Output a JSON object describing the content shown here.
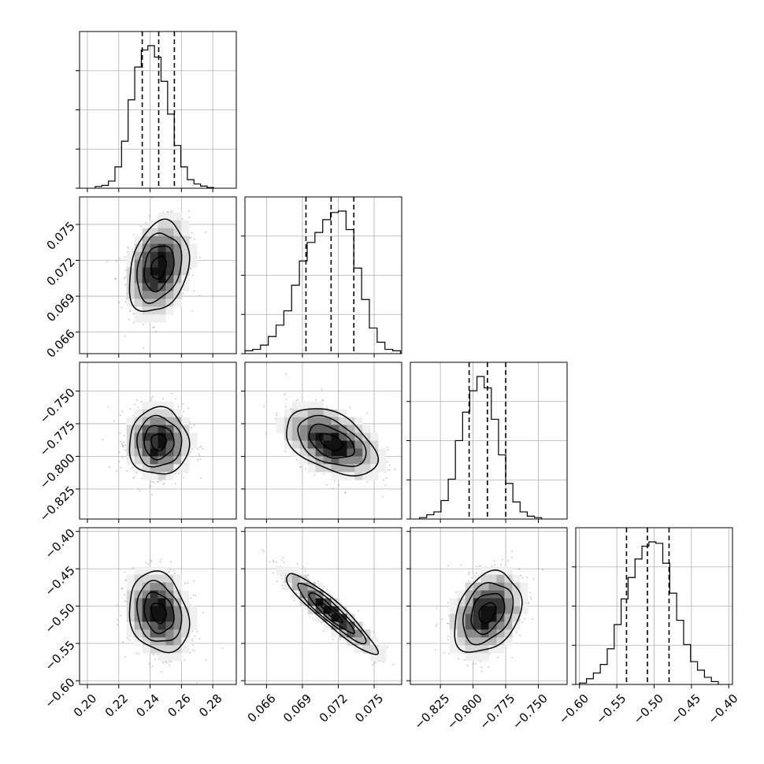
{
  "chart_data": {
    "type": "corner",
    "params": [
      {
        "range": [
          0.195,
          0.295
        ],
        "quantiles": [
          0.235,
          0.2455,
          0.2555
        ],
        "ticks": [
          0.2,
          0.22,
          0.24,
          0.26,
          0.28
        ],
        "tick_labels": [
          "0.20",
          "0.22",
          "0.24",
          "0.26",
          "0.28"
        ],
        "hist": {
          "edges_start": 0.205,
          "bin_width": 0.0042,
          "counts": [
            0.012,
            0.02,
            0.05,
            0.15,
            0.33,
            0.62,
            0.85,
            0.97,
            1.0,
            0.92,
            0.75,
            0.52,
            0.3,
            0.15,
            0.06,
            0.03,
            0.015,
            0.005
          ]
        }
      },
      {
        "range": [
          0.0642,
          0.0773
        ],
        "quantiles": [
          0.0693,
          0.0714,
          0.0733
        ],
        "ticks": [
          0.066,
          0.069,
          0.072,
          0.075
        ],
        "tick_labels": [
          "0.066",
          "0.069",
          "0.072",
          "0.075"
        ],
        "hist": {
          "edges_start": 0.0642,
          "bin_width": 0.00065,
          "counts": [
            0.02,
            0.03,
            0.06,
            0.12,
            0.2,
            0.3,
            0.48,
            0.65,
            0.78,
            0.85,
            0.94,
            0.99,
            1.0,
            0.87,
            0.6,
            0.38,
            0.18,
            0.08,
            0.03,
            0.02
          ]
        }
      },
      {
        "range": [
          -0.848,
          -0.728
        ],
        "quantiles": [
          -0.803,
          -0.789,
          -0.775
        ],
        "ticks": [
          -0.825,
          -0.8,
          -0.775,
          -0.75
        ],
        "tick_labels": [
          "−0.825",
          "−0.800",
          "−0.775",
          "−0.750"
        ],
        "hist": {
          "edges_start": -0.841,
          "bin_width": 0.0055,
          "counts": [
            0.01,
            0.03,
            0.05,
            0.13,
            0.28,
            0.55,
            0.75,
            0.9,
            1.0,
            0.92,
            0.7,
            0.45,
            0.25,
            0.12,
            0.05,
            0.02,
            0.01
          ]
        }
      },
      {
        "range": [
          -0.605,
          -0.395
        ],
        "quantiles": [
          -0.537,
          -0.509,
          -0.48
        ],
        "ticks": [
          -0.6,
          -0.55,
          -0.5,
          -0.45,
          -0.4
        ],
        "tick_labels": [
          "−0.60",
          "−0.55",
          "−0.50",
          "−0.45",
          "−0.40"
        ],
        "hist": {
          "edges_start": -0.6,
          "bin_width": 0.0093,
          "counts": [
            0.01,
            0.04,
            0.08,
            0.14,
            0.25,
            0.42,
            0.6,
            0.75,
            0.88,
            0.97,
            1.0,
            0.99,
            0.85,
            0.64,
            0.45,
            0.28,
            0.16,
            0.1,
            0.05,
            0.02
          ]
        }
      }
    ],
    "pairs": [
      {
        "row": 1,
        "col": 0,
        "mean": [
          0.2455,
          0.0714
        ],
        "sd": [
          0.0095,
          0.0019
        ],
        "corr": 0.25
      },
      {
        "row": 2,
        "col": 0,
        "mean": [
          0.2455,
          -0.789
        ],
        "sd": [
          0.0095,
          0.0128
        ],
        "corr": 0.0
      },
      {
        "row": 2,
        "col": 1,
        "mean": [
          0.0714,
          -0.789
        ],
        "sd": [
          0.0019,
          0.0128
        ],
        "corr": -0.45
      },
      {
        "row": 3,
        "col": 0,
        "mean": [
          0.2455,
          -0.509
        ],
        "sd": [
          0.0095,
          0.027
        ],
        "corr": -0.2
      },
      {
        "row": 3,
        "col": 1,
        "mean": [
          0.0714,
          -0.509
        ],
        "sd": [
          0.0019,
          0.027
        ],
        "corr": -0.93
      },
      {
        "row": 3,
        "col": 2,
        "mean": [
          -0.789,
          -0.509
        ],
        "sd": [
          0.0128,
          0.027
        ],
        "corr": 0.3
      }
    ],
    "grid": true
  }
}
